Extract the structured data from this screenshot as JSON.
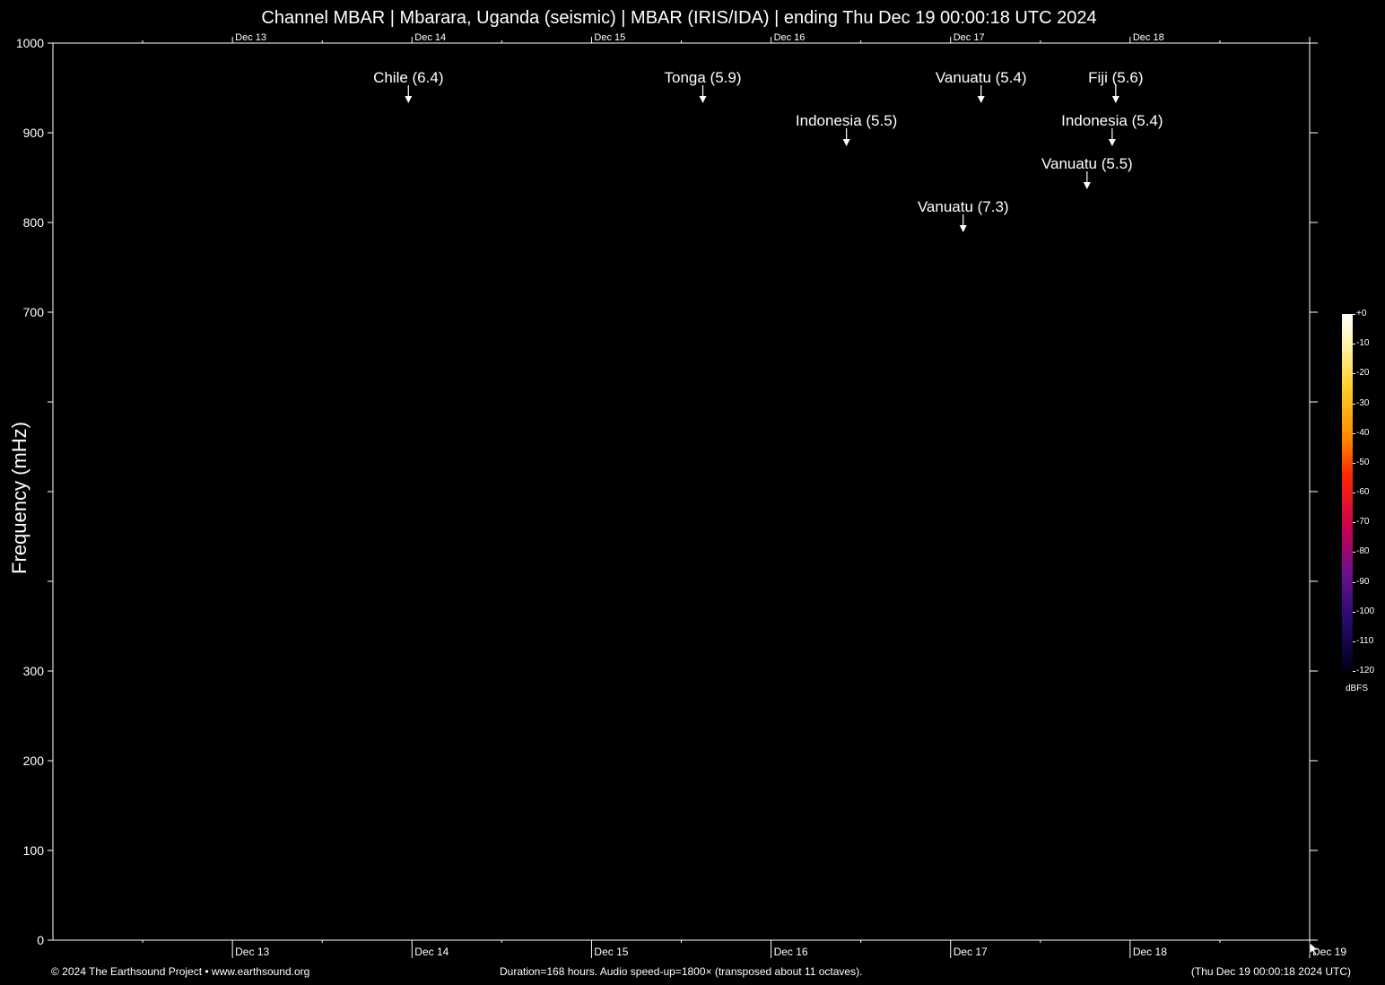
{
  "title": "Channel MBAR | Mbarara, Uganda (seismic) | MBAR (IRIS/IDA) | ending Thu Dec 19 00:00:18 UTC 2024",
  "footer": {
    "left": "© 2024 The Earthsound Project • www.earthsound.org",
    "middle": "Duration=168 hours. Audio speed-up=1800× (transposed about 11 octaves).",
    "right": "(Thu Dec 19 00:00:18 2024 UTC)"
  },
  "colorbar": {
    "unit": "dBFS",
    "ticks": [
      "+0",
      "-10",
      "-20",
      "-30",
      "-40",
      "-50",
      "-60",
      "-70",
      "-80",
      "-90",
      "-100",
      "-110",
      "-120"
    ]
  },
  "chart_data": {
    "type": "heatmap",
    "ylabel": "Frequency (mHz)",
    "ylim": [
      0,
      1000
    ],
    "y_ticks": [
      0,
      100,
      200,
      300,
      400,
      500,
      600,
      700,
      800,
      900,
      1000
    ],
    "y_tick_labels": [
      "0",
      "100",
      "200",
      "300",
      "",
      "",
      "",
      "700",
      "800",
      "900",
      "1000"
    ],
    "x_day_ticks": [
      {
        "day": 1,
        "label": "Dec 13"
      },
      {
        "day": 2,
        "label": "Dec 14"
      },
      {
        "day": 3,
        "label": "Dec 15"
      },
      {
        "day": 4,
        "label": "Dec 16"
      },
      {
        "day": 5,
        "label": "Dec 17"
      },
      {
        "day": 6,
        "label": "Dec 18"
      },
      {
        "day": 7,
        "label": "Dec 19"
      }
    ],
    "x_span_days": 7,
    "events": [
      {
        "label": "Chile (6.4)",
        "day": 1.98,
        "row": 0
      },
      {
        "label": "Tonga (5.9)",
        "day": 3.62,
        "row": 0
      },
      {
        "label": "Indonesia (5.5)",
        "day": 4.42,
        "row": 1
      },
      {
        "label": "Vanuatu (7.3)",
        "day": 5.07,
        "row": 3
      },
      {
        "label": "Vanuatu (5.4)",
        "day": 5.17,
        "row": 0
      },
      {
        "label": "Vanuatu (5.5)",
        "day": 5.76,
        "row": 2
      },
      {
        "label": "Indonesia (5.4)",
        "day": 5.9,
        "row": 1
      },
      {
        "label": "Fiji (5.6)",
        "day": 5.92,
        "row": 0
      }
    ],
    "colors": {
      "background": "#000000",
      "axis": "#ffffff"
    }
  }
}
